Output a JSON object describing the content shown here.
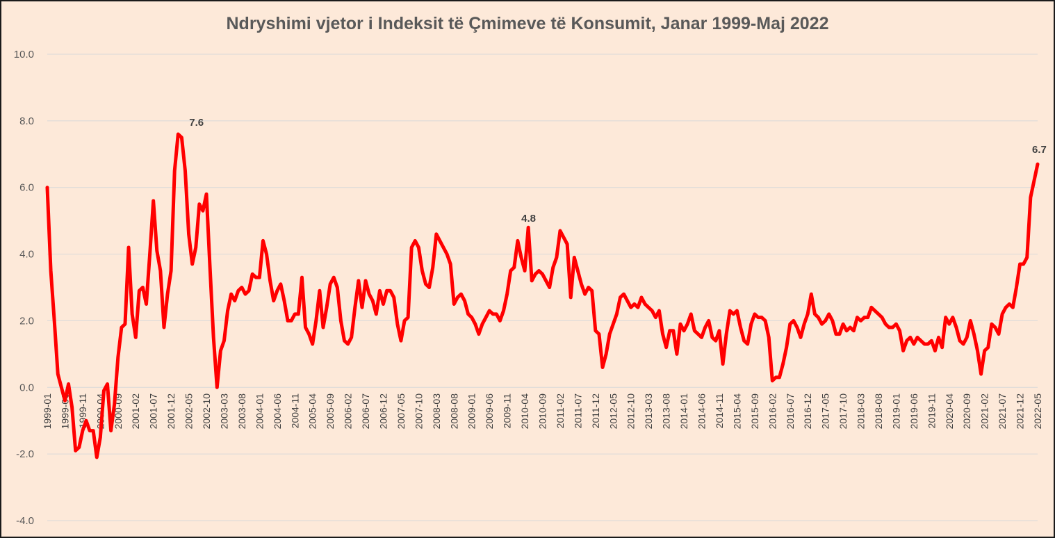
{
  "chart_data": {
    "type": "line",
    "title": "Ndryshimi vjetor i Indeksit të Çmimeve të Konsumit, Janar 1999-Maj 2022",
    "xlabel": "",
    "ylabel": "",
    "ylim": [
      -4,
      10
    ],
    "y_ticks": [
      "10.0",
      "8.0",
      "6.0",
      "4.0",
      "2.0",
      "0.0",
      "-2.0",
      "-4.0"
    ],
    "grid": true,
    "legend": "none",
    "x_tick_labels": [
      "1999-01",
      "1999-06",
      "1999-11",
      "2000-04",
      "2000-09",
      "2001-02",
      "2001-07",
      "2001-12",
      "2002-05",
      "2002-10",
      "2003-03",
      "2003-08",
      "2004-01",
      "2004-06",
      "2004-11",
      "2005-04",
      "2005-09",
      "2006-02",
      "2006-07",
      "2006-12",
      "2007-05",
      "2007-10",
      "2008-03",
      "2008-08",
      "2009-01",
      "2009-06",
      "2009-11",
      "2010-04",
      "2010-09",
      "2011-02",
      "2011-07",
      "2011-12",
      "2012-05",
      "2012-10",
      "2013-03",
      "2013-08",
      "2014-01",
      "2014-06",
      "2014-11",
      "2015-04",
      "2015-09",
      "2016-02",
      "2016-07",
      "2016-12",
      "2017-05",
      "2017-10",
      "2018-03",
      "2018-08",
      "2019-01",
      "2019-06",
      "2019-11",
      "2020-04",
      "2020-09",
      "2021-02",
      "2021-07",
      "2021-12",
      "2022-05"
    ],
    "series": [
      {
        "color": "#ff0000",
        "start": "1999-01",
        "end": "2022-05",
        "values": [
          6.0,
          3.5,
          2.0,
          0.4,
          0.0,
          -0.4,
          0.1,
          -0.6,
          -1.9,
          -1.8,
          -1.3,
          -1.0,
          -1.3,
          -1.3,
          -2.1,
          -1.5,
          -0.1,
          0.1,
          -1.3,
          -0.5,
          0.9,
          1.8,
          1.9,
          4.2,
          2.2,
          1.5,
          2.9,
          3.0,
          2.5,
          4.0,
          5.6,
          4.1,
          3.5,
          1.8,
          2.8,
          3.5,
          6.5,
          7.6,
          7.5,
          6.5,
          4.6,
          3.7,
          4.2,
          5.5,
          5.3,
          5.8,
          3.6,
          1.5,
          0.0,
          1.1,
          1.4,
          2.3,
          2.8,
          2.6,
          2.9,
          3.0,
          2.8,
          2.9,
          3.4,
          3.3,
          3.3,
          4.4,
          4.0,
          3.2,
          2.6,
          2.9,
          3.1,
          2.6,
          2.0,
          2.0,
          2.2,
          2.2,
          3.3,
          1.8,
          1.6,
          1.3,
          2.0,
          2.9,
          1.8,
          2.4,
          3.1,
          3.3,
          3.0,
          2.0,
          1.4,
          1.3,
          1.5,
          2.4,
          3.2,
          2.4,
          3.2,
          2.8,
          2.6,
          2.2,
          2.9,
          2.5,
          2.9,
          2.9,
          2.7,
          1.9,
          1.4,
          2.0,
          2.1,
          4.2,
          4.4,
          4.2,
          3.5,
          3.1,
          3.0,
          3.6,
          4.6,
          4.4,
          4.2,
          4.0,
          3.7,
          2.5,
          2.7,
          2.8,
          2.6,
          2.2,
          2.1,
          1.9,
          1.6,
          1.9,
          2.1,
          2.3,
          2.2,
          2.2,
          2.0,
          2.3,
          2.8,
          3.5,
          3.6,
          4.4,
          3.9,
          3.5,
          4.8,
          3.2,
          3.4,
          3.5,
          3.4,
          3.2,
          3.0,
          3.6,
          3.9,
          4.7,
          4.5,
          4.3,
          2.7,
          3.9,
          3.5,
          3.1,
          2.8,
          3.0,
          2.9,
          1.7,
          1.6,
          0.6,
          1.0,
          1.6,
          1.9,
          2.2,
          2.7,
          2.8,
          2.6,
          2.4,
          2.5,
          2.4,
          2.7,
          2.5,
          2.4,
          2.3,
          2.1,
          2.3,
          1.6,
          1.2,
          1.7,
          1.7,
          1.0,
          1.9,
          1.7,
          1.9,
          2.2,
          1.7,
          1.6,
          1.5,
          1.8,
          2.0,
          1.5,
          1.4,
          1.7,
          0.7,
          1.6,
          2.3,
          2.2,
          2.3,
          1.8,
          1.4,
          1.3,
          1.9,
          2.2,
          2.1,
          2.1,
          2.0,
          1.5,
          0.2,
          0.3,
          0.3,
          0.7,
          1.2,
          1.9,
          2.0,
          1.8,
          1.5,
          1.9,
          2.2,
          2.8,
          2.2,
          2.1,
          1.9,
          2.0,
          2.2,
          2.0,
          1.6,
          1.6,
          1.9,
          1.7,
          1.8,
          1.7,
          2.1,
          2.0,
          2.1,
          2.1,
          2.4,
          2.3,
          2.2,
          2.1,
          1.9,
          1.8,
          1.8,
          1.9,
          1.7,
          1.1,
          1.4,
          1.5,
          1.3,
          1.5,
          1.4,
          1.3,
          1.3,
          1.4,
          1.1,
          1.5,
          1.2,
          2.1,
          1.9,
          2.1,
          1.8,
          1.4,
          1.3,
          1.5,
          2.0,
          1.6,
          1.1,
          0.4,
          1.1,
          1.2,
          1.9,
          1.8,
          1.6,
          2.2,
          2.4,
          2.5,
          2.4,
          3.0,
          3.7,
          3.7,
          3.9,
          5.7,
          6.2,
          6.7
        ]
      }
    ],
    "annotations": [
      {
        "x": "2002-02",
        "y": 7.6,
        "label": "7.6"
      },
      {
        "x": "2010-05",
        "y": 4.8,
        "label": "4.8"
      },
      {
        "x": "2022-05",
        "y": 6.7,
        "label": "6.7"
      }
    ]
  }
}
